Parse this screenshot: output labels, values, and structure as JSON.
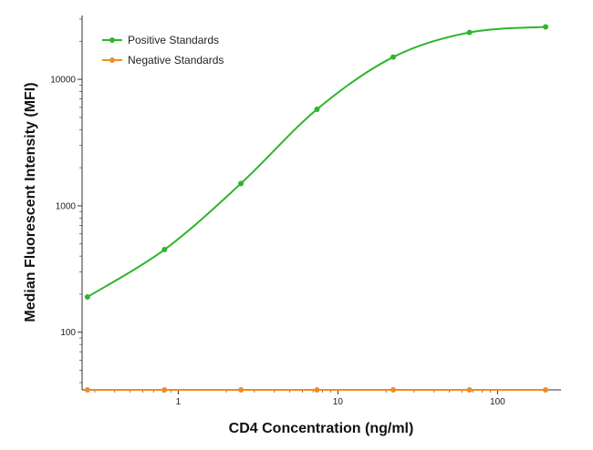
{
  "chart_data": {
    "type": "line",
    "xlabel": "CD4 Concentration (ng/ml)",
    "ylabel": "Median  Fluorescent Intensity  (MFI)",
    "xscale": "log",
    "yscale": "log",
    "xlim": [
      0.25,
      250
    ],
    "ylim": [
      35,
      32000
    ],
    "x_ticks": [
      1,
      10,
      100
    ],
    "x_tick_labels": [
      "1",
      "10",
      "100"
    ],
    "y_ticks": [
      100,
      1000,
      10000
    ],
    "y_tick_labels": [
      "100",
      "1000",
      "10000"
    ],
    "grid": false,
    "legend_position": "top-left",
    "x": [
      0.27,
      0.82,
      2.47,
      7.4,
      22.2,
      66.7,
      200
    ],
    "series": [
      {
        "name": "Positive Standards",
        "color": "#2db52d",
        "values": [
          190,
          450,
          1500,
          5800,
          15000,
          23500,
          26000
        ]
      },
      {
        "name": "Negative Standards",
        "color": "#f08a2a",
        "values": [
          35,
          35,
          35,
          35,
          35,
          35,
          35
        ]
      }
    ]
  }
}
